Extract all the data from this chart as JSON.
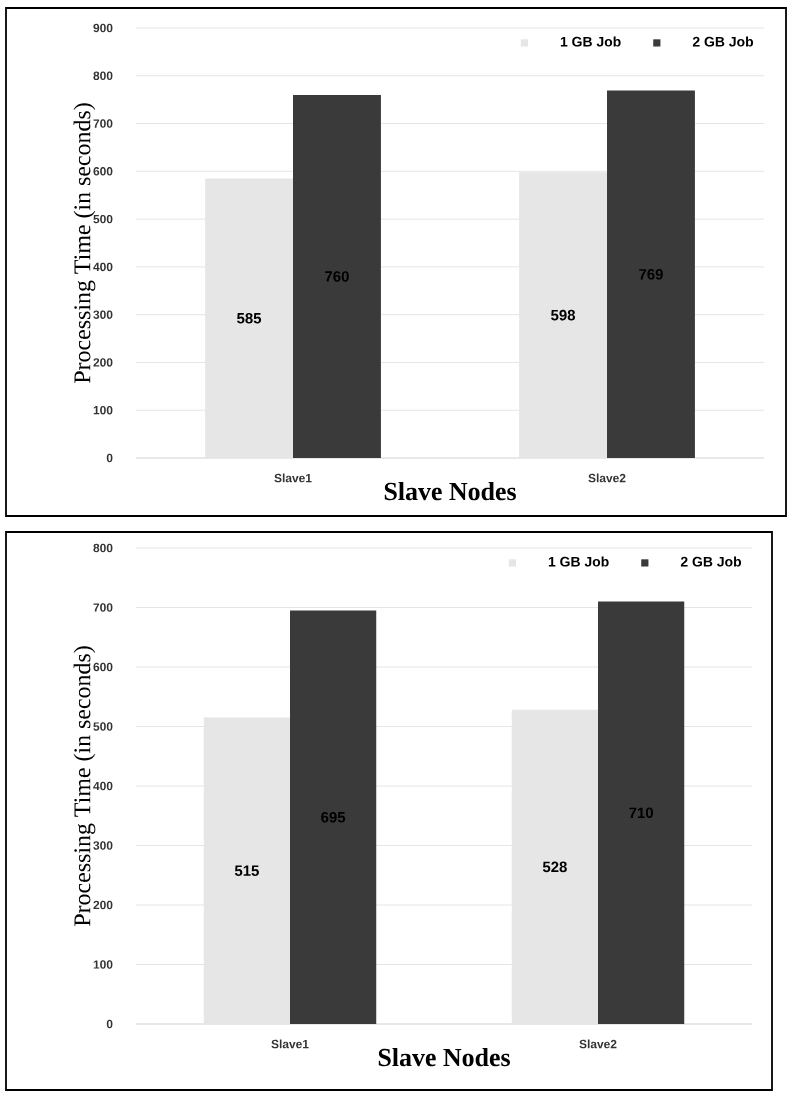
{
  "chart_data": [
    {
      "type": "bar",
      "xlabel": "Slave Nodes",
      "ylabel": "Processing Time (in seconds)",
      "categories": [
        "Slave1",
        "Slave2"
      ],
      "series": [
        {
          "name": "1 GB Job",
          "color": "#e6e6e6",
          "values": [
            585,
            598
          ]
        },
        {
          "name": "2 GB Job",
          "color": "#3a3a3a",
          "values": [
            760,
            769
          ]
        }
      ],
      "ylim": [
        0,
        900
      ],
      "yticks": [
        0,
        100,
        200,
        300,
        400,
        500,
        600,
        700,
        800,
        900
      ],
      "grid": "y",
      "legend": "top right",
      "data_labels": true
    },
    {
      "type": "bar",
      "xlabel": "Slave Nodes",
      "ylabel": "Processing Time (in seconds)",
      "categories": [
        "Slave1",
        "Slave2"
      ],
      "series": [
        {
          "name": "1 GB Job",
          "color": "#e6e6e6",
          "values": [
            515,
            528
          ]
        },
        {
          "name": "2 GB Job",
          "color": "#3a3a3a",
          "values": [
            695,
            710
          ]
        }
      ],
      "ylim": [
        0,
        800
      ],
      "yticks": [
        0,
        100,
        200,
        300,
        400,
        500,
        600,
        700,
        800
      ],
      "grid": "y",
      "legend": "top right",
      "data_labels": true
    }
  ]
}
